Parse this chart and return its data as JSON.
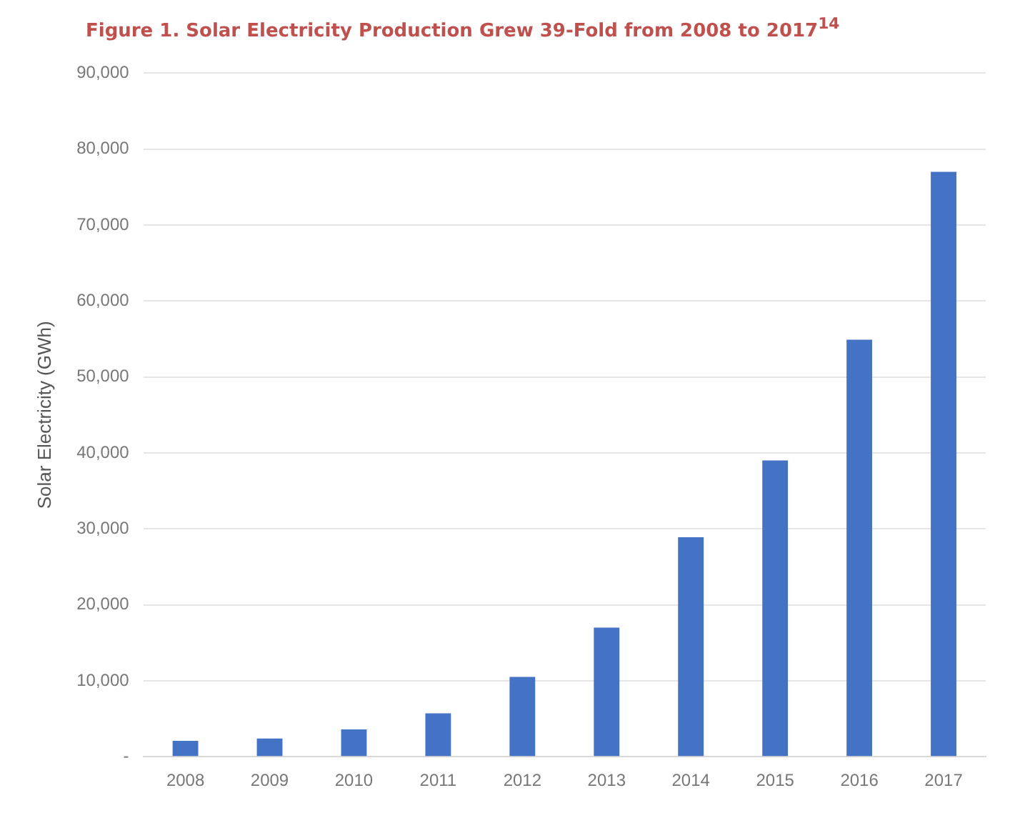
{
  "chart_data": {
    "type": "bar",
    "title": "Figure 1. Solar Electricity Production Grew 39-Fold from 2008 to 2017$^{14}$",
    "ylabel": "Solar Electricity (GWh)",
    "categories": [
      "2008",
      "2009",
      "2010",
      "2011",
      "2012",
      "2013",
      "2014",
      "2015",
      "2016",
      "2017"
    ],
    "values": [
      2100,
      2400,
      3600,
      5700,
      10500,
      17000,
      28900,
      39000,
      54900,
      77000
    ],
    "color": "#4472c4",
    "ylim": [
      0,
      90000
    ],
    "yticks": [
      {
        "value": 0,
        "label": "-"
      },
      {
        "value": 10000,
        "label": "10,000"
      },
      {
        "value": 20000,
        "label": "20,000"
      },
      {
        "value": 30000,
        "label": "30,000"
      },
      {
        "value": 40000,
        "label": "40,000"
      },
      {
        "value": 50000,
        "label": "50,000"
      },
      {
        "value": 60000,
        "label": "60,000"
      },
      {
        "value": 70000,
        "label": "70,000"
      },
      {
        "value": 80000,
        "label": "80,000"
      },
      {
        "value": 90000,
        "label": "90,000"
      }
    ],
    "grid": "y"
  }
}
